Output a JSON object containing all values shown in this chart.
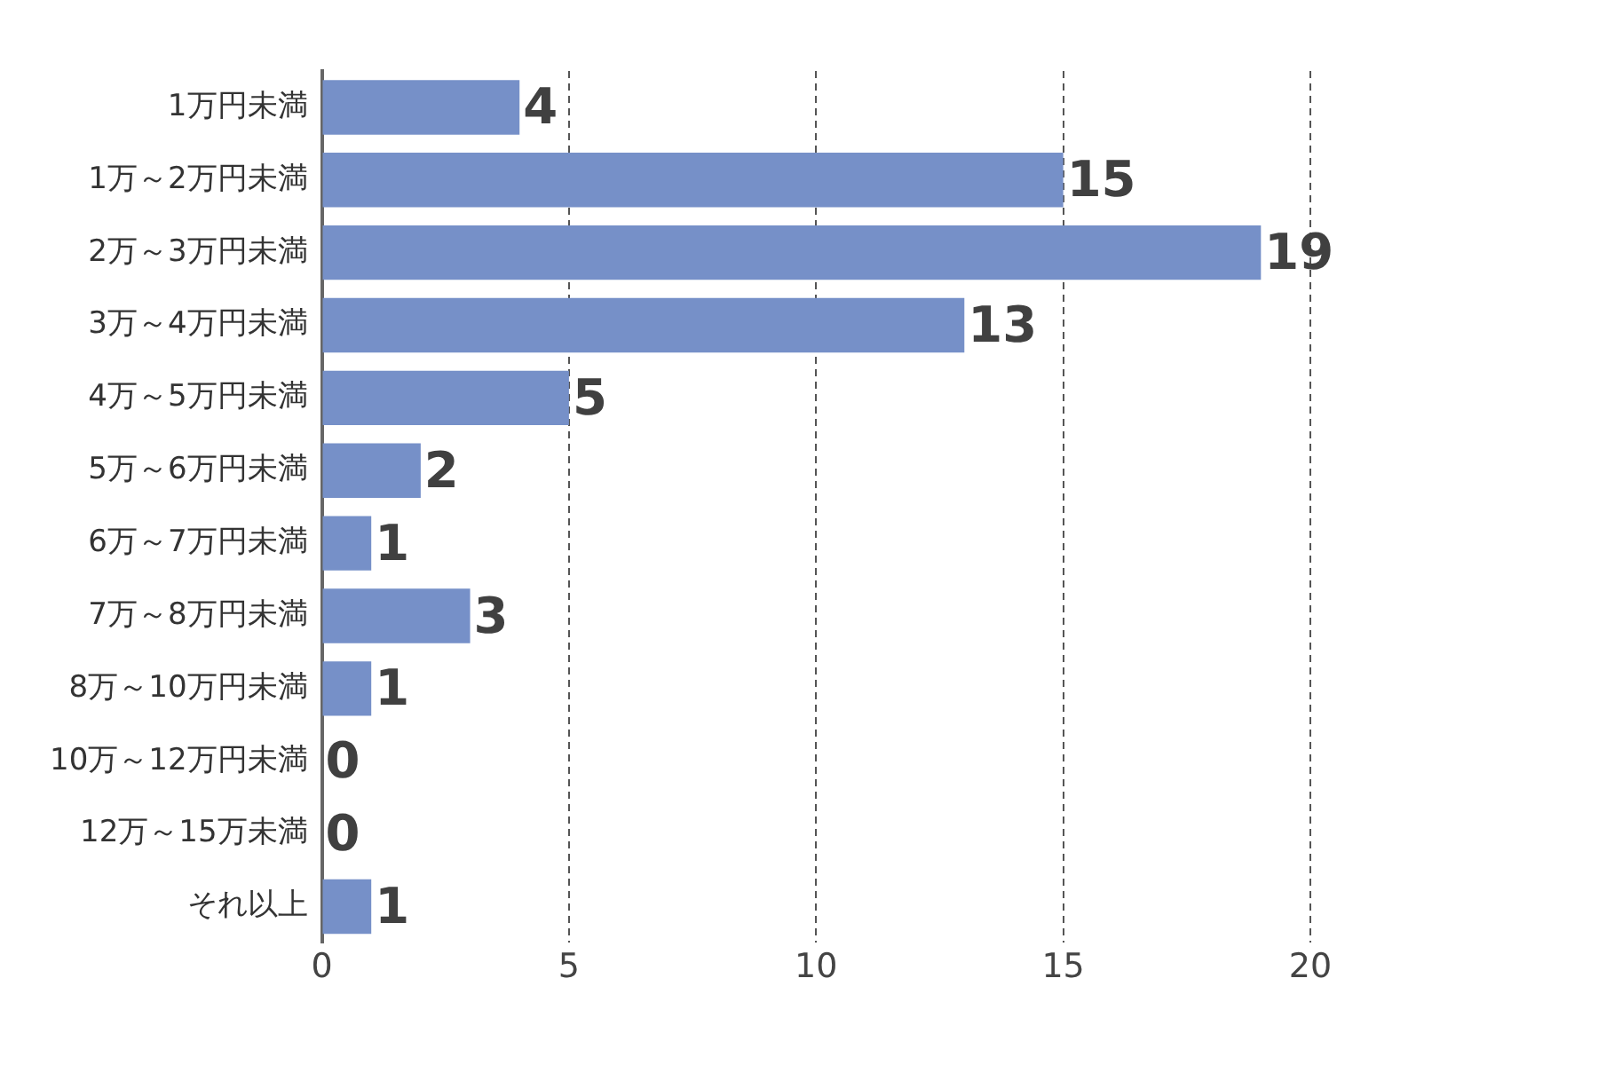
{
  "chart_data": {
    "type": "bar",
    "orientation": "horizontal",
    "categories": [
      "1万円未満",
      "1万～2万円未満",
      "2万～3万円未満",
      "3万～4万円未満",
      "4万～5万円未満",
      "5万～6万円未満",
      "6万～7万円未満",
      "7万～8万円未満",
      "8万～10万円未満",
      "10万～12万円未満",
      "12万～15万未満",
      "それ以上"
    ],
    "values": [
      4,
      15,
      19,
      13,
      5,
      2,
      1,
      3,
      1,
      0,
      0,
      1
    ],
    "color": "#7690c8",
    "xlim": [
      0,
      20
    ],
    "xticks": [
      0,
      5,
      10,
      15,
      20
    ],
    "grid": "x",
    "data_labels": true,
    "legend": false
  }
}
